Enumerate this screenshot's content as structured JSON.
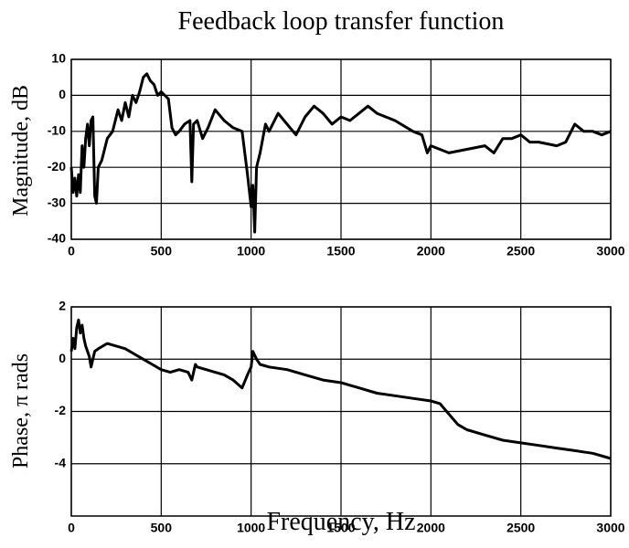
{
  "chart_data": [
    {
      "type": "line",
      "title": "Feedback loop transfer function",
      "ylabel": "Magnitude, dB",
      "color": "#000000",
      "grid": true,
      "xlim": [
        0,
        3000
      ],
      "xticks": [
        0,
        500,
        1000,
        1500,
        2000,
        2500,
        3000
      ],
      "ylim": [
        -40,
        10
      ],
      "yticks": [
        -40,
        -30,
        -20,
        -10,
        0,
        10
      ],
      "x": [
        0,
        10,
        20,
        30,
        40,
        50,
        60,
        70,
        80,
        90,
        100,
        110,
        120,
        130,
        140,
        150,
        170,
        200,
        230,
        260,
        280,
        300,
        320,
        340,
        360,
        380,
        400,
        420,
        440,
        460,
        480,
        500,
        520,
        540,
        560,
        580,
        600,
        630,
        660,
        670,
        680,
        700,
        730,
        760,
        800,
        850,
        900,
        950,
        980,
        1000,
        1010,
        1020,
        1030,
        1050,
        1080,
        1100,
        1150,
        1200,
        1250,
        1300,
        1350,
        1400,
        1450,
        1500,
        1550,
        1600,
        1650,
        1700,
        1800,
        1900,
        1950,
        1980,
        2000,
        2050,
        2100,
        2200,
        2300,
        2350,
        2400,
        2450,
        2500,
        2550,
        2600,
        2700,
        2750,
        2800,
        2850,
        2900,
        2950,
        3000
      ],
      "values": [
        -20,
        -27,
        -23,
        -28,
        -22,
        -27,
        -14,
        -20,
        -12,
        -8,
        -14,
        -7,
        -6,
        -28,
        -30,
        -20,
        -18,
        -12,
        -10,
        -4,
        -7,
        -2,
        -6,
        0,
        -2,
        1,
        5,
        6,
        4,
        3,
        0,
        1,
        0,
        -1,
        -9,
        -11,
        -10,
        -8,
        -7,
        -24,
        -8,
        -7,
        -12,
        -9,
        -4,
        -7,
        -9,
        -10,
        -22,
        -31,
        -25,
        -38,
        -20,
        -16,
        -8,
        -10,
        -5,
        -8,
        -11,
        -6,
        -3,
        -5,
        -8,
        -6,
        -7,
        -5,
        -3,
        -5,
        -7,
        -10,
        -11,
        -16,
        -14,
        -15,
        -16,
        -15,
        -14,
        -16,
        -12,
        -12,
        -11,
        -13,
        -13,
        -14,
        -13,
        -8,
        -10,
        -10,
        -11,
        -10
      ]
    },
    {
      "type": "line",
      "ylabel": "Phase, π rads",
      "xlabel": "Frequency, Hz",
      "color": "#000000",
      "grid": true,
      "xlim": [
        0,
        3000
      ],
      "xticks": [
        0,
        500,
        1000,
        1500,
        2000,
        2500,
        3000
      ],
      "ylim": [
        -6,
        2
      ],
      "yticks": [
        -4,
        -2,
        0,
        2
      ],
      "x": [
        0,
        10,
        20,
        30,
        40,
        50,
        60,
        70,
        80,
        100,
        110,
        130,
        150,
        200,
        250,
        300,
        350,
        400,
        450,
        500,
        550,
        600,
        650,
        670,
        690,
        700,
        750,
        800,
        850,
        900,
        950,
        980,
        1000,
        1010,
        1030,
        1050,
        1100,
        1200,
        1300,
        1400,
        1500,
        1600,
        1700,
        1800,
        1900,
        2000,
        2050,
        2100,
        2150,
        2200,
        2300,
        2400,
        2500,
        2600,
        2700,
        2800,
        2900,
        3000
      ],
      "values": [
        0.3,
        0.8,
        0.4,
        1.2,
        1.5,
        1.0,
        1.3,
        0.8,
        0.5,
        0.1,
        -0.3,
        0.3,
        0.4,
        0.6,
        0.5,
        0.4,
        0.2,
        0,
        -0.2,
        -0.4,
        -0.5,
        -0.4,
        -0.5,
        -0.8,
        -0.2,
        -0.3,
        -0.4,
        -0.5,
        -0.6,
        -0.8,
        -1.1,
        -0.6,
        -0.3,
        0.3,
        0,
        -0.2,
        -0.3,
        -0.4,
        -0.6,
        -0.8,
        -0.9,
        -1.1,
        -1.3,
        -1.4,
        -1.5,
        -1.6,
        -1.7,
        -2.1,
        -2.5,
        -2.7,
        -2.9,
        -3.1,
        -3.2,
        -3.3,
        -3.4,
        -3.5,
        -3.6,
        -3.8
      ]
    }
  ]
}
